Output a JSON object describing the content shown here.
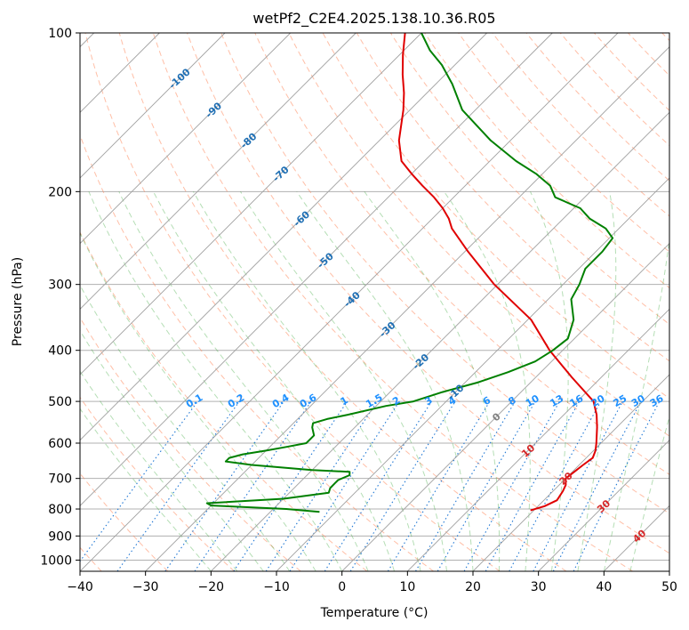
{
  "chart_data": {
    "type": "line",
    "title": "wetPf2_C2E4.2025.138.10.36.R05",
    "xlabel": "Temperature (°C)",
    "ylabel": "Pressure (hPa)",
    "xlim": [
      -40,
      50
    ],
    "ylim": [
      1050,
      100
    ],
    "y_scale": "log",
    "grid": true,
    "x_ticks": [
      -40,
      -30,
      -20,
      -10,
      0,
      10,
      20,
      30,
      40,
      50
    ],
    "y_ticks": [
      100,
      200,
      300,
      400,
      500,
      600,
      700,
      800,
      900,
      1000
    ],
    "x_tick_labels": [
      "−40",
      "−30",
      "−20",
      "−10",
      "0",
      "10",
      "20",
      "30",
      "40",
      "50"
    ],
    "y_tick_labels": [
      "100",
      "200",
      "300",
      "400",
      "500",
      "600",
      "700",
      "800",
      "900",
      "1000"
    ],
    "colors": {
      "temperature": "#e00000",
      "dewpoint": "#008000",
      "isotherm": "#a0a0a0",
      "dry_adiabat": "#ff7f50",
      "moist_adiabat": "#2ca02c",
      "mixing_ratio": "#1f77d4",
      "grid": "#b0b0b0",
      "isotherm_label": "#1f6fb4",
      "dry_adiabat_label": "#d62728",
      "mixing_ratio_label": "#1e90ff"
    },
    "series": [
      {
        "key": "temperature",
        "pressure": [
          805,
          790,
          770,
          740,
          720,
          700,
          680,
          660,
          640,
          620,
          600,
          560,
          530,
          500,
          450,
          400,
          350,
          300,
          260,
          235,
          225,
          215,
          205,
          195,
          185,
          175,
          160,
          140,
          130,
          120,
          110,
          100
        ],
        "values": [
          19.5,
          21,
          22,
          21.5,
          21,
          20,
          20.3,
          20.6,
          21,
          20.3,
          19.3,
          17,
          15,
          12.5,
          5.5,
          -2,
          -9.5,
          -20.5,
          -29.5,
          -35.5,
          -37.5,
          -40,
          -43,
          -46.5,
          -50,
          -53.5,
          -57,
          -61,
          -63.5,
          -66.5,
          -69.5,
          -72.5
        ]
      },
      {
        "key": "dewpoint",
        "pressure": [
          810,
          800,
          788,
          780,
          765,
          745,
          730,
          715,
          705,
          690,
          680,
          675,
          660,
          650,
          640,
          630,
          620,
          610,
          600,
          580,
          560,
          550,
          540,
          530,
          510,
          500,
          480,
          460,
          440,
          420,
          400,
          380,
          350,
          320,
          300,
          280,
          260,
          245,
          235,
          225,
          215,
          205,
          195,
          185,
          175,
          160,
          140,
          125,
          115,
          108,
          100
        ],
        "values": [
          -12.5,
          -18,
          -30,
          -31,
          -20,
          -14,
          -14.5,
          -14.5,
          -14.5,
          -13.5,
          -14,
          -20,
          -30,
          -34.5,
          -34.5,
          -33,
          -30,
          -27.5,
          -25,
          -25,
          -26.5,
          -27,
          -25.5,
          -23,
          -18.5,
          -15,
          -12,
          -8,
          -5,
          -2.5,
          -1.5,
          -1,
          -3,
          -6.5,
          -7.5,
          -9,
          -9,
          -9.5,
          -12,
          -16,
          -19,
          -24.5,
          -27,
          -31,
          -36,
          -43,
          -52,
          -57.5,
          -62,
          -66,
          -70
        ]
      }
    ],
    "isotherm_labels": [
      {
        "t": -100,
        "label": "-100"
      },
      {
        "t": -90,
        "label": "-90"
      },
      {
        "t": -80,
        "label": "-80"
      },
      {
        "t": -70,
        "label": "-70"
      },
      {
        "t": -60,
        "label": "-60"
      },
      {
        "t": -50,
        "label": "-50"
      },
      {
        "t": -40,
        "label": "-40"
      },
      {
        "t": -30,
        "label": "-30"
      },
      {
        "t": -20,
        "label": "-20"
      },
      {
        "t": -10,
        "label": "-10"
      },
      {
        "t": 0,
        "label": "0"
      },
      {
        "t": 10,
        "label": "10"
      },
      {
        "t": 20,
        "label": "20"
      },
      {
        "t": 30,
        "label": "30"
      },
      {
        "t": 40,
        "label": "40"
      }
    ],
    "mixing_ratio_labels": [
      "0.1",
      "0.2",
      "0.4",
      "0.6",
      "1",
      "1.5",
      "2",
      "3",
      "4",
      "6",
      "8",
      "10",
      "13",
      "16",
      "20",
      "25",
      "30",
      "36"
    ],
    "mixing_ratio_values": [
      0.1,
      0.2,
      0.4,
      0.6,
      1,
      1.5,
      2,
      3,
      4,
      6,
      8,
      10,
      13,
      16,
      20,
      25,
      30,
      36
    ]
  }
}
